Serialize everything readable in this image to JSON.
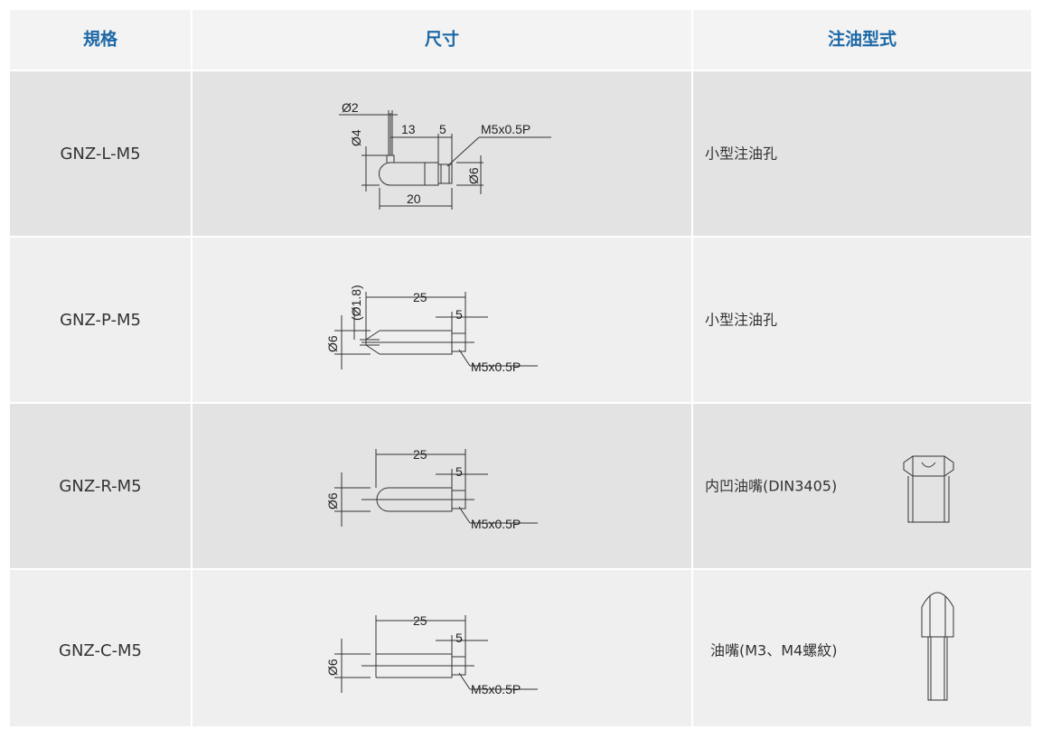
{
  "table": {
    "header": [
      "規格",
      "尺寸",
      "注油型式"
    ],
    "rows": [
      {
        "spec": "GNZ-L-M5",
        "drawing": [
          "Ø2",
          "Ø4",
          "13",
          "5",
          "M5x0.5P",
          "Ø6",
          "20"
        ],
        "type": "小型注油孔"
      },
      {
        "spec": "GNZ-P-M5",
        "drawing": [
          "(Ø1.8)",
          "25",
          "5",
          "Ø6",
          "M5x0.5P"
        ],
        "type": "小型注油孔"
      },
      {
        "spec": "GNZ-R-M5",
        "drawing": [
          "25",
          "5",
          "Ø6",
          "M5x0.5P"
        ],
        "type": "内凹油嘴(DIN3405)"
      },
      {
        "spec": "GNZ-C-M5",
        "drawing": [
          "25",
          "5",
          "Ø6",
          "M5x0.5P"
        ],
        "type": "油嘴(M3、M4螺紋)"
      }
    ]
  }
}
